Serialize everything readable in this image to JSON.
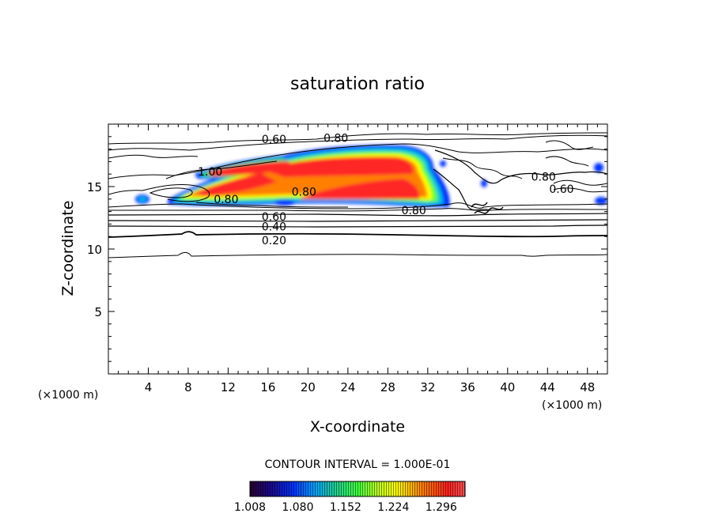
{
  "chart_data": {
    "type": "contour",
    "title": "saturation ratio",
    "xlabel": "X-coordinate",
    "ylabel": "Z-coordinate",
    "x_unit": "(×1000 m)",
    "z_unit": "(×1000 m)",
    "xlim": [
      0,
      50
    ],
    "ylim": [
      0,
      20
    ],
    "x_ticks": [
      4,
      8,
      12,
      16,
      20,
      24,
      28,
      32,
      36,
      40,
      44,
      48
    ],
    "y_ticks": [
      5,
      10,
      15
    ],
    "contour_interval_label": "CONTOUR INTERVAL = 1.000E-01",
    "colorbar": {
      "min": 1.008,
      "max": 1.332,
      "tick_labels": [
        "1.008",
        "1.080",
        "1.152",
        "1.224",
        "1.296"
      ],
      "colors": [
        "#2a0030",
        "#1a0a90",
        "#0030ff",
        "#00a0ff",
        "#20d090",
        "#40ff40",
        "#c0ff20",
        "#ffff00",
        "#ff8000",
        "#ff2020",
        "#ff5050"
      ]
    },
    "contour_labels": [
      {
        "text": "0.60",
        "x": 16.6,
        "z": 18.8
      },
      {
        "text": "0.80",
        "x": 22.8,
        "z": 18.9
      },
      {
        "text": "1.00",
        "x": 10.2,
        "z": 16.2
      },
      {
        "text": "0.80",
        "x": 11.8,
        "z": 14.0
      },
      {
        "text": "0.80",
        "x": 19.6,
        "z": 14.6
      },
      {
        "text": "0.80",
        "x": 30.6,
        "z": 13.1
      },
      {
        "text": "0.60",
        "x": 16.6,
        "z": 12.6
      },
      {
        "text": "0.40",
        "x": 16.6,
        "z": 11.8
      },
      {
        "text": "0.20",
        "x": 16.6,
        "z": 10.7
      },
      {
        "text": "0.80",
        "x": 43.6,
        "z": 15.8
      },
      {
        "text": "0.60",
        "x": 45.4,
        "z": 14.8
      }
    ]
  }
}
